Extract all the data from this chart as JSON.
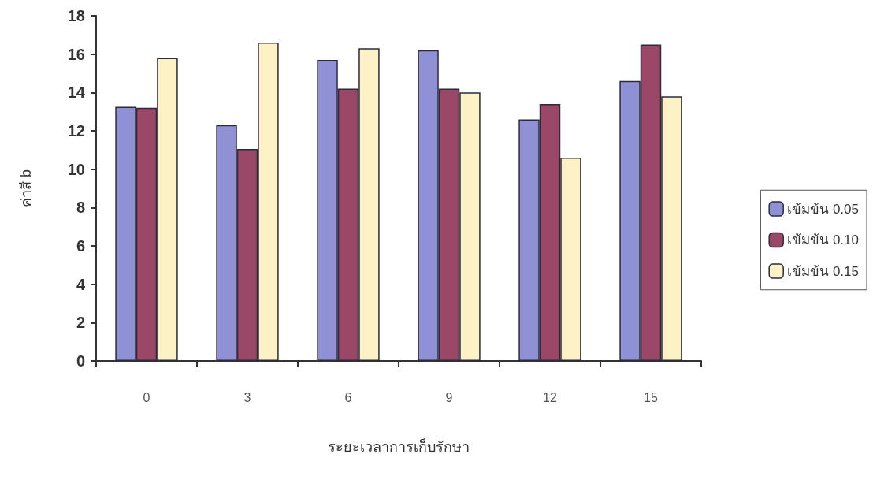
{
  "chart_data": {
    "type": "bar",
    "xlabel": "ระยะเวลาการเก็บรักษา",
    "ylabel": "ค่าสี b",
    "categories": [
      "0",
      "3",
      "6",
      "9",
      "12",
      "15"
    ],
    "series": [
      {
        "name": "เข้มข้น 0.05",
        "color": "#8f91d4",
        "values": [
          13.25,
          12.3,
          15.7,
          16.2,
          12.6,
          14.6
        ]
      },
      {
        "name": "เข้มข้น 0.10",
        "color": "#9a4768",
        "values": [
          13.2,
          11.05,
          14.2,
          14.2,
          13.4,
          16.5
        ]
      },
      {
        "name": "เข้มข้น 0.15",
        "color": "#fcf2c6",
        "values": [
          15.8,
          16.6,
          16.3,
          14.0,
          10.6,
          13.8
        ]
      }
    ],
    "ylim": [
      0,
      18
    ],
    "yticks": [
      0,
      2,
      4,
      6,
      8,
      10,
      12,
      14,
      16,
      18
    ],
    "grid": false,
    "legend": "right"
  }
}
